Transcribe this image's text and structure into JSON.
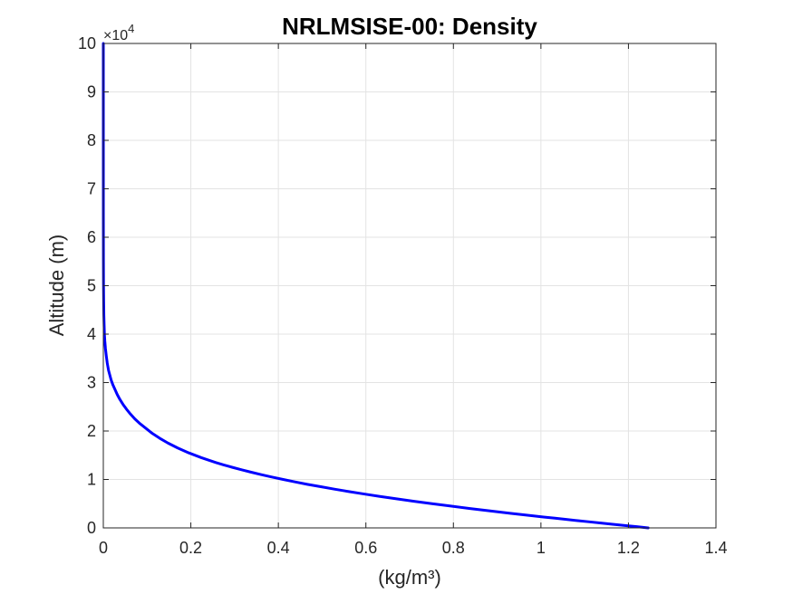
{
  "chart_data": {
    "type": "line",
    "title": "NRLMSISE-00: Density",
    "xlabel": "(kg/m³)",
    "ylabel": "Altitude (m)",
    "xlim": [
      0,
      1.4
    ],
    "ylim": [
      0,
      100000
    ],
    "xticks": [
      0,
      0.2,
      0.4,
      0.6,
      0.8,
      1,
      1.2,
      1.4
    ],
    "xtick_labels": [
      "0",
      "0.2",
      "0.4",
      "0.6",
      "0.8",
      "1",
      "1.2",
      "1.4"
    ],
    "yticks": [
      0,
      10000,
      20000,
      30000,
      40000,
      50000,
      60000,
      70000,
      80000,
      90000,
      100000
    ],
    "ytick_labels": [
      "0",
      "1",
      "2",
      "3",
      "4",
      "5",
      "6",
      "7",
      "8",
      "9",
      "10"
    ],
    "y_exponent": {
      "multiplier": "×10",
      "power": "4"
    },
    "grid": true,
    "series": [
      {
        "color": "#0000ff",
        "x": [
          1.245,
          1.219,
          1.192,
          1.164,
          1.137,
          1.111,
          1.084,
          1.058,
          1.032,
          1.006,
          0.981,
          0.932,
          0.884,
          0.838,
          0.794,
          0.751,
          0.71,
          0.67,
          0.632,
          0.596,
          0.561,
          0.528,
          0.497,
          0.466,
          0.438,
          0.411,
          0.385,
          0.361,
          0.338,
          0.316,
          0.295,
          0.275,
          0.257,
          0.24,
          0.224,
          0.195,
          0.17,
          0.148,
          0.129,
          0.112,
          0.098,
          0.084,
          0.072,
          0.062,
          0.053,
          0.045,
          0.038,
          0.032,
          0.027,
          0.022,
          0.018,
          0.015,
          0.012,
          0.009,
          0.0068,
          0.0049,
          0.0035,
          0.0025,
          0.0018,
          0.0012,
          0.0008,
          0.0005,
          0.0003,
          0.0001,
          2e-05
        ],
        "y": [
          0,
          250,
          500,
          750,
          1000,
          1250,
          1500,
          1750,
          2000,
          2250,
          2500,
          3000,
          3500,
          4000,
          4500,
          5000,
          5500,
          6000,
          6500,
          7000,
          7500,
          8000,
          8500,
          9000,
          9500,
          10000,
          10500,
          11000,
          11500,
          12000,
          12500,
          13000,
          13500,
          14000,
          14500,
          15500,
          16500,
          17500,
          18500,
          19500,
          20500,
          21500,
          22500,
          23500,
          24500,
          25500,
          26500,
          27500,
          28500,
          29500,
          30500,
          31500,
          32500,
          34000,
          35500,
          37000,
          38500,
          40000,
          42000,
          44000,
          47000,
          50000,
          55000,
          65000,
          100000
        ]
      }
    ]
  }
}
